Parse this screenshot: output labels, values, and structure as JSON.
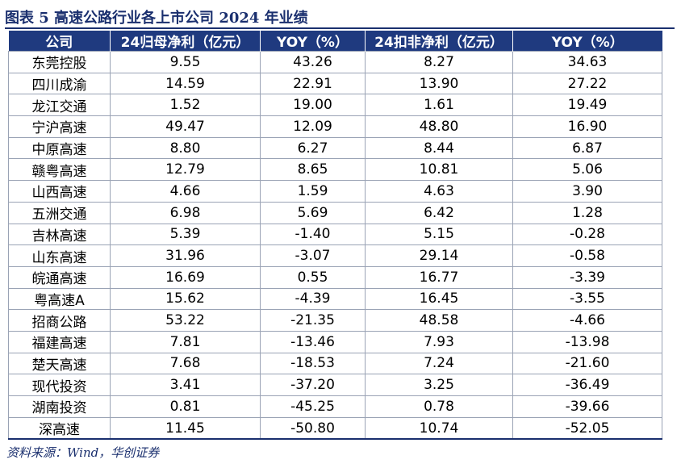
{
  "title": "图表 5  高速公路行业各上市公司 2024 年业绩",
  "table": {
    "headers": [
      "公司",
      "24归母净利（亿元）",
      "YOY（%）",
      "24扣非净利（亿元）",
      "YOY（%）"
    ],
    "rows": [
      [
        "东莞控股",
        "9.55",
        "43.26",
        "8.27",
        "34.63"
      ],
      [
        "四川成渝",
        "14.59",
        "22.91",
        "13.90",
        "27.22"
      ],
      [
        "龙江交通",
        "1.52",
        "19.00",
        "1.61",
        "19.49"
      ],
      [
        "宁沪高速",
        "49.47",
        "12.09",
        "48.80",
        "16.90"
      ],
      [
        "中原高速",
        "8.80",
        "6.27",
        "8.44",
        "6.87"
      ],
      [
        "赣粤高速",
        "12.79",
        "8.65",
        "10.81",
        "5.06"
      ],
      [
        "山西高速",
        "4.66",
        "1.59",
        "4.63",
        "3.90"
      ],
      [
        "五洲交通",
        "6.98",
        "5.69",
        "6.42",
        "1.28"
      ],
      [
        "吉林高速",
        "5.39",
        "-1.40",
        "5.15",
        "-0.28"
      ],
      [
        "山东高速",
        "31.96",
        "-3.07",
        "29.14",
        "-0.58"
      ],
      [
        "皖通高速",
        "16.69",
        "0.55",
        "16.77",
        "-3.39"
      ],
      [
        "粤高速A",
        "15.62",
        "-4.39",
        "16.45",
        "-3.55"
      ],
      [
        "招商公路",
        "53.22",
        "-21.35",
        "48.58",
        "-4.66"
      ],
      [
        "福建高速",
        "7.81",
        "-13.46",
        "7.93",
        "-13.98"
      ],
      [
        "楚天高速",
        "7.68",
        "-18.53",
        "7.24",
        "-21.60"
      ],
      [
        "现代投资",
        "3.41",
        "-37.20",
        "3.25",
        "-36.49"
      ],
      [
        "湖南投资",
        "0.81",
        "-45.25",
        "0.78",
        "-39.66"
      ],
      [
        "深高速",
        "11.45",
        "-50.80",
        "10.74",
        "-52.05"
      ]
    ]
  },
  "source": "资料来源：Wind，华创证券"
}
